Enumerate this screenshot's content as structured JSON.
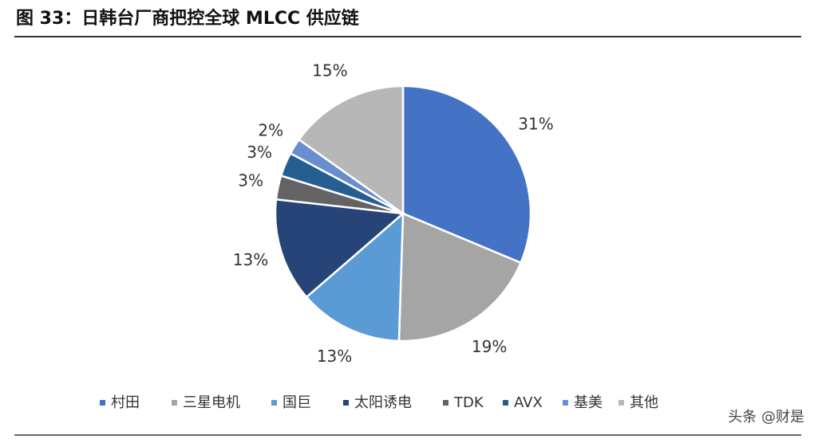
{
  "chart_data": {
    "type": "pie",
    "title": "图 33：日韩台厂商把控全球 MLCC 供应链",
    "categories": [
      "村田",
      "三星电机",
      "国巨",
      "太阳诱电",
      "TDK",
      "AVX",
      "基美",
      "其他"
    ],
    "values": [
      31,
      19,
      13,
      13,
      3,
      3,
      2,
      15
    ],
    "value_labels": [
      "31%",
      "19%",
      "13%",
      "13%",
      "3%",
      "3%",
      "2%",
      "15%"
    ],
    "colors": [
      "#4472c4",
      "#a5a5a5",
      "#5b9bd5",
      "#264478",
      "#636363",
      "#255e91",
      "#698ed0",
      "#b7b7b7"
    ],
    "legend": "bottom"
  },
  "watermark": "头条 @财是"
}
